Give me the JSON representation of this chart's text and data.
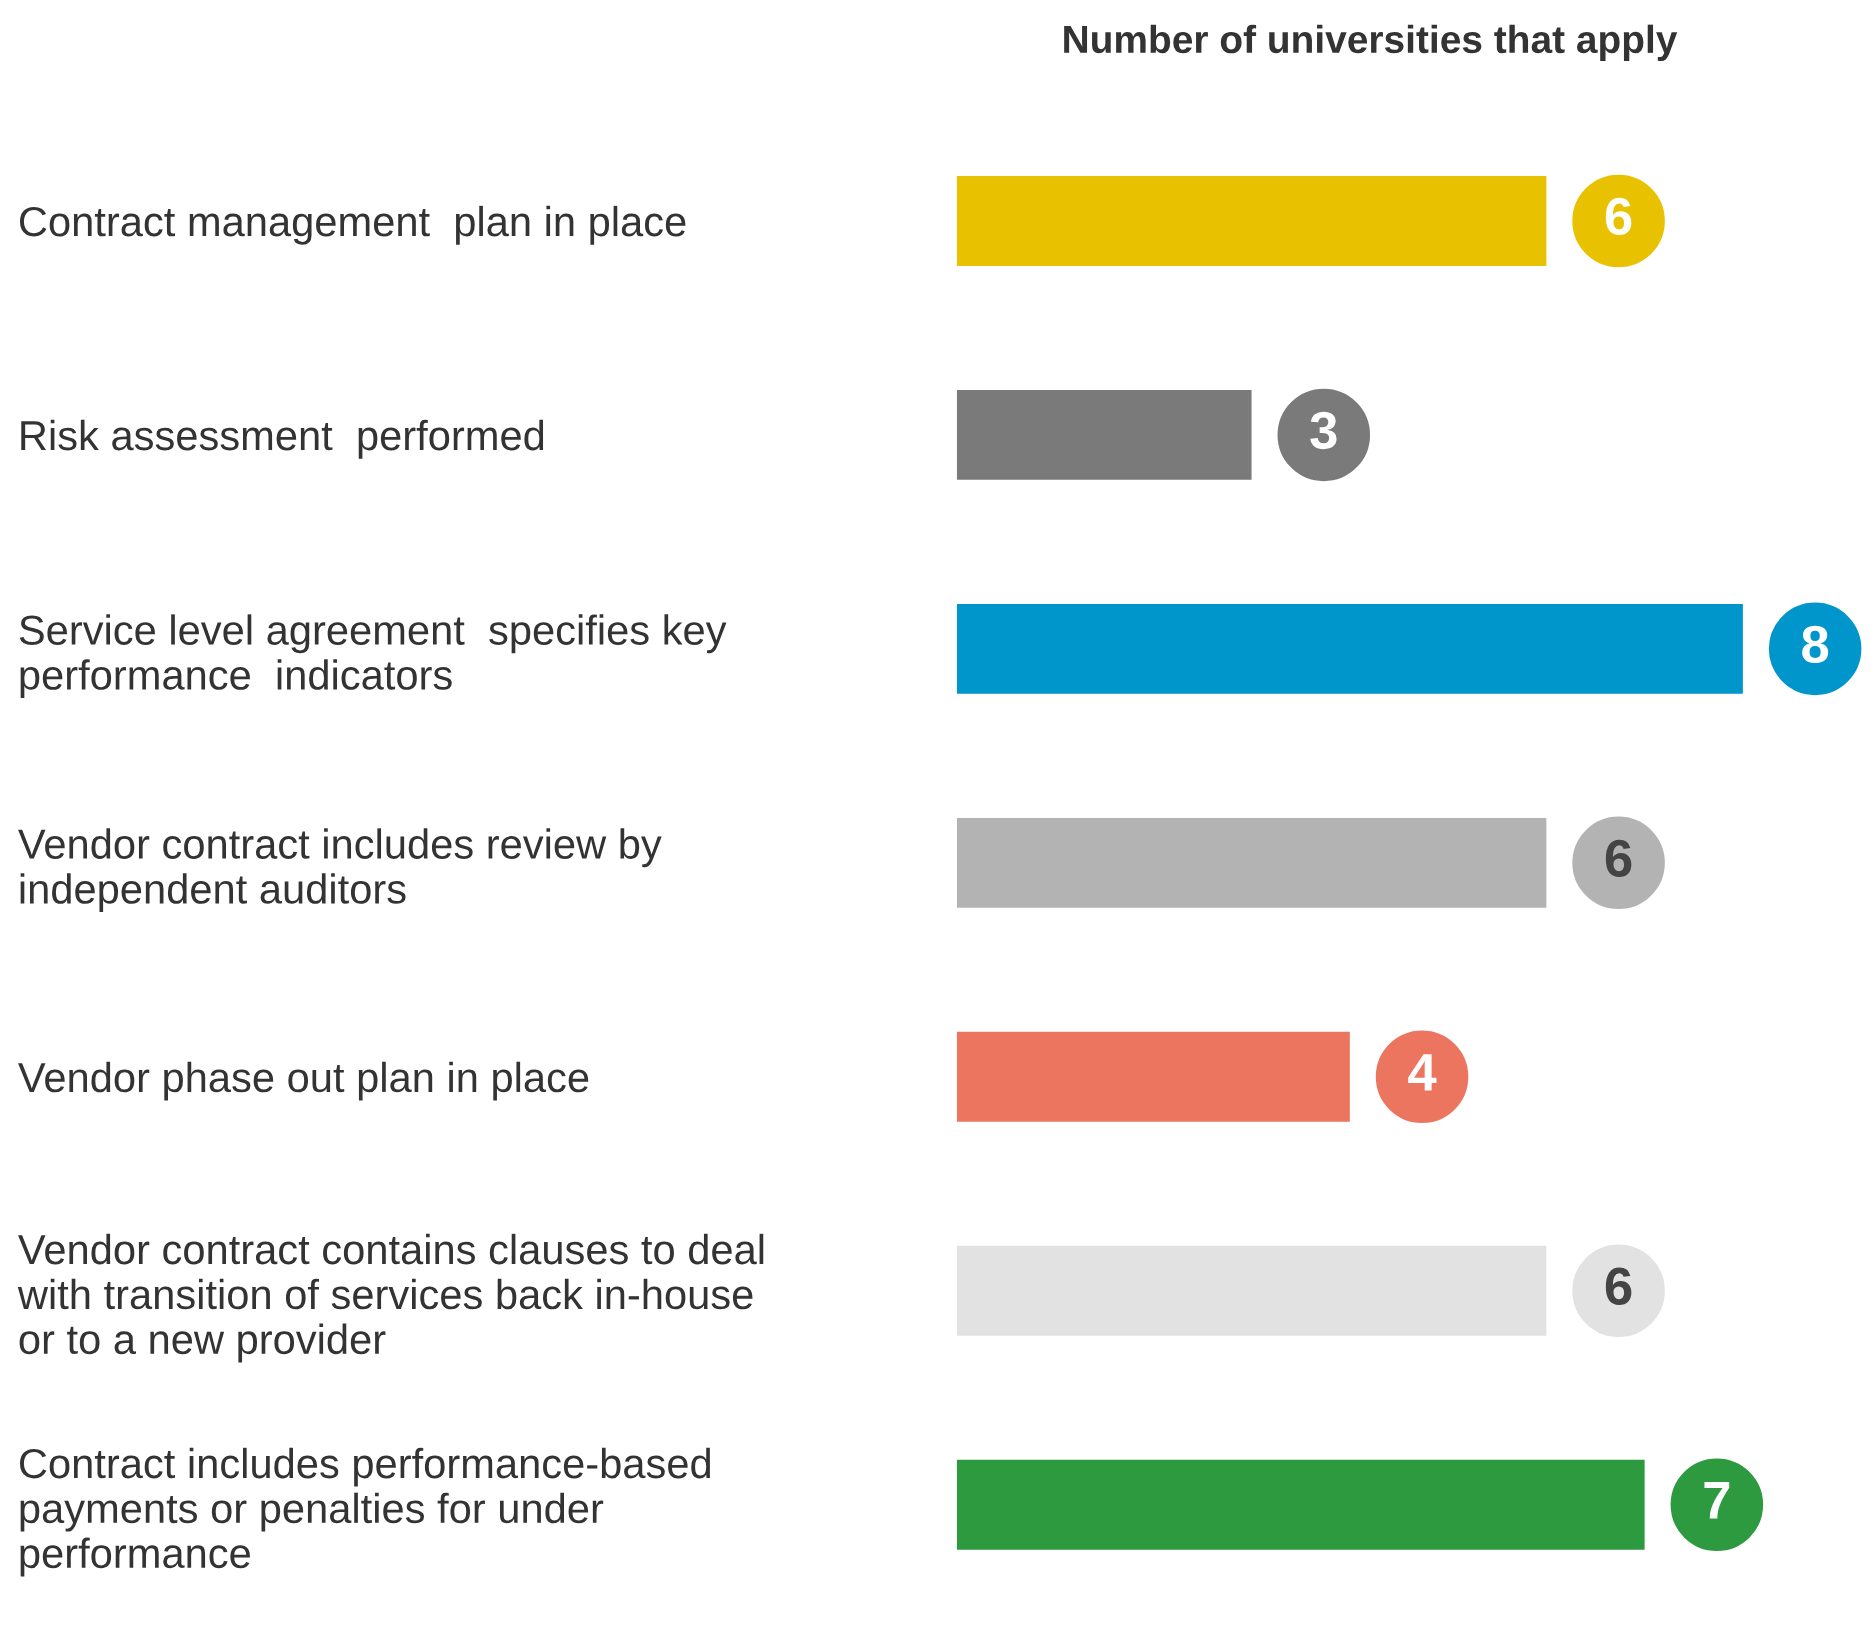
{
  "chart_data": {
    "type": "bar",
    "orientation": "horizontal",
    "title": "Number of universities that apply",
    "categories": [
      "Contract management  plan in place",
      "Risk assessment  performed",
      "Service level agreement  specifies key\nperformance  indicators",
      "Vendor contract includes review by\nindependent auditors",
      "Vendor phase out plan in place",
      "Vendor contract contains clauses to deal\nwith transition of services back in-house\nor to a new provider",
      "Contract includes performance-based\npayments or penalties for under\nperformance"
    ],
    "values": [
      6,
      3,
      8,
      6,
      4,
      6,
      7
    ],
    "colors": [
      "#e8c200",
      "#7a7a7a",
      "#0096cc",
      "#b3b3b3",
      "#ec7560",
      "#e2e2e2",
      "#2e9a40"
    ],
    "data_labels": true,
    "tick_labels": "y"
  }
}
